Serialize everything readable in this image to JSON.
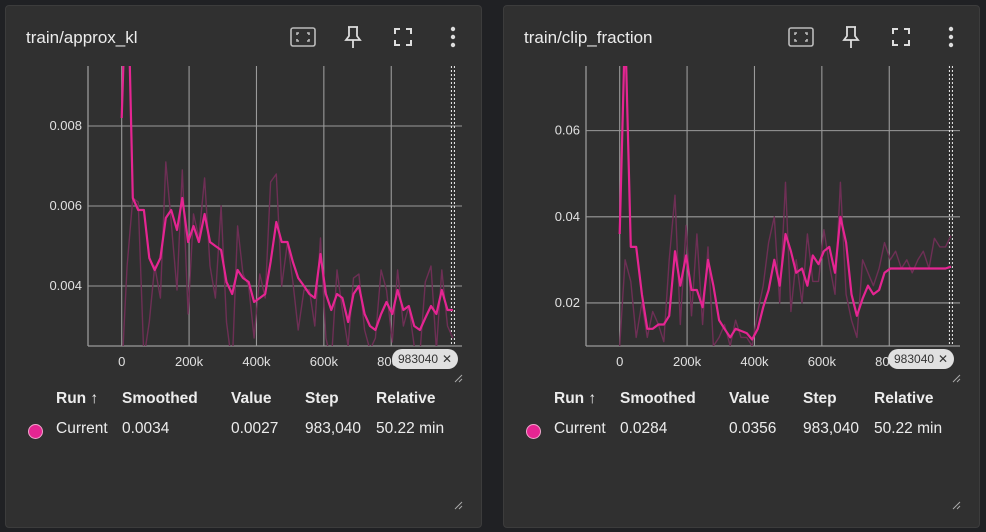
{
  "panels": [
    {
      "title": "train/approx_kl",
      "hover_step_chip": "983040",
      "table": {
        "headers": {
          "run": "Run ↑",
          "smoothed": "Smoothed",
          "value": "Value",
          "step": "Step",
          "relative": "Relative"
        },
        "row": {
          "run": "Current",
          "smoothed": "0.0034",
          "value": "0.0027",
          "step": "983,040",
          "relative": "50.22 min"
        }
      }
    },
    {
      "title": "train/clip_fraction",
      "hover_step_chip": "983040",
      "table": {
        "headers": {
          "run": "Run ↑",
          "smoothed": "Smoothed",
          "value": "Value",
          "step": "Step",
          "relative": "Relative"
        },
        "row": {
          "run": "Current",
          "smoothed": "0.0284",
          "value": "0.0356",
          "step": "983,040",
          "relative": "50.22 min"
        }
      }
    }
  ],
  "icons": [
    "fit-domain-icon",
    "pin-icon",
    "fullscreen-icon",
    "more-vert-icon"
  ],
  "colors": {
    "series": "#e52592",
    "raw_series": "#6e2f55",
    "grid": "#9a9a9a",
    "background": "#303030"
  },
  "chart_data": [
    {
      "type": "line",
      "title": "train/approx_kl",
      "xlabel": "",
      "ylabel": "",
      "x_ticks": [
        "0",
        "200k",
        "400k",
        "600k",
        "800k"
      ],
      "y_ticks": [
        "0.004",
        "0.006",
        "0.008"
      ],
      "xlim": [
        -100000,
        1010000
      ],
      "ylim": [
        0.0025,
        0.0095
      ],
      "grid": true,
      "hover_step": 983040,
      "series": [
        {
          "name": "Current",
          "x": [
            0,
            16000,
            33000,
            49000,
            66000,
            82000,
            98000,
            115000,
            131000,
            147000,
            164000,
            180000,
            197000,
            213000,
            229000,
            246000,
            262000,
            278000,
            295000,
            311000,
            328000,
            344000,
            360000,
            377000,
            393000,
            410000,
            426000,
            442000,
            459000,
            475000,
            492000,
            508000,
            524000,
            541000,
            557000,
            573000,
            590000,
            606000,
            622000,
            639000,
            655000,
            672000,
            688000,
            704000,
            721000,
            737000,
            753000,
            770000,
            786000,
            803000,
            819000,
            836000,
            852000,
            868000,
            885000,
            901000,
            918000,
            934000,
            950000,
            967000,
            983000
          ],
          "y": [
            0.0082,
            0.0125,
            0.0062,
            0.0059,
            0.0059,
            0.0047,
            0.0044,
            0.0047,
            0.0057,
            0.0059,
            0.0054,
            0.0062,
            0.0051,
            0.0055,
            0.0051,
            0.0058,
            0.0051,
            0.005,
            0.0049,
            0.0041,
            0.0038,
            0.0044,
            0.0042,
            0.0041,
            0.0036,
            0.0037,
            0.0038,
            0.0046,
            0.0056,
            0.0051,
            0.0051,
            0.0046,
            0.0042,
            0.004,
            0.0038,
            0.0037,
            0.0048,
            0.0038,
            0.0034,
            0.0038,
            0.0037,
            0.0031,
            0.0038,
            0.004,
            0.0033,
            0.003,
            0.0029,
            0.0033,
            0.0036,
            0.0033,
            0.0039,
            0.0034,
            0.0035,
            0.003,
            0.0029,
            0.0032,
            0.0035,
            0.0033,
            0.0039,
            0.0034,
            0.0034
          ]
        },
        {
          "name": "Current (raw)",
          "x": [
            0,
            16000,
            33000,
            49000,
            66000,
            82000,
            98000,
            115000,
            131000,
            147000,
            164000,
            180000,
            197000,
            213000,
            229000,
            246000,
            262000,
            278000,
            295000,
            311000,
            328000,
            344000,
            360000,
            377000,
            393000,
            410000,
            426000,
            442000,
            459000,
            475000,
            492000,
            508000,
            524000,
            541000,
            557000,
            573000,
            590000,
            606000,
            622000,
            639000,
            655000,
            672000,
            688000,
            704000,
            721000,
            737000,
            753000,
            770000,
            786000,
            803000,
            819000,
            836000,
            852000,
            868000,
            885000,
            901000,
            918000,
            934000,
            950000,
            967000,
            983000
          ],
          "y": [
            0.0018,
            0.0045,
            0.0062,
            0.0061,
            0.0022,
            0.0031,
            0.0045,
            0.0037,
            0.0071,
            0.0056,
            0.0039,
            0.0069,
            0.0033,
            0.0058,
            0.0052,
            0.0067,
            0.0045,
            0.0037,
            0.006,
            0.0031,
            0.002,
            0.0055,
            0.0043,
            0.004,
            0.0027,
            0.0043,
            0.0037,
            0.0066,
            0.0068,
            0.004,
            0.0051,
            0.0041,
            0.0029,
            0.0039,
            0.0039,
            0.003,
            0.0052,
            0.0027,
            0.0021,
            0.0044,
            0.0034,
            0.0025,
            0.0042,
            0.0043,
            0.0029,
            0.0024,
            0.0027,
            0.0044,
            0.0039,
            0.0026,
            0.0044,
            0.003,
            0.0035,
            0.0025,
            0.0023,
            0.0041,
            0.0045,
            0.0024,
            0.0044,
            0.003,
            0.0027
          ]
        }
      ]
    },
    {
      "type": "line",
      "title": "train/clip_fraction",
      "xlabel": "",
      "ylabel": "",
      "x_ticks": [
        "0",
        "200k",
        "400k",
        "600k",
        "800k"
      ],
      "y_ticks": [
        "0.02",
        "0.04",
        "0.06"
      ],
      "xlim": [
        -100000,
        1010000
      ],
      "ylim": [
        0.01,
        0.075
      ],
      "grid": true,
      "hover_step": 983040,
      "series": [
        {
          "name": "Current",
          "x": [
            0,
            16000,
            33000,
            49000,
            66000,
            82000,
            98000,
            115000,
            131000,
            147000,
            164000,
            180000,
            197000,
            213000,
            229000,
            246000,
            262000,
            278000,
            295000,
            311000,
            328000,
            344000,
            360000,
            377000,
            393000,
            410000,
            426000,
            442000,
            459000,
            475000,
            492000,
            508000,
            524000,
            541000,
            557000,
            573000,
            590000,
            606000,
            622000,
            639000,
            655000,
            672000,
            688000,
            704000,
            721000,
            737000,
            753000,
            770000,
            786000,
            803000,
            819000,
            836000,
            852000,
            868000,
            885000,
            901000,
            918000,
            934000,
            950000,
            967000,
            983000
          ],
          "y": [
            0.036,
            0.085,
            0.033,
            0.033,
            0.022,
            0.014,
            0.014,
            0.015,
            0.015,
            0.017,
            0.032,
            0.024,
            0.031,
            0.023,
            0.023,
            0.019,
            0.03,
            0.024,
            0.016,
            0.014,
            0.012,
            0.014,
            0.0135,
            0.013,
            0.0115,
            0.014,
            0.019,
            0.023,
            0.03,
            0.024,
            0.036,
            0.032,
            0.027,
            0.028,
            0.024,
            0.031,
            0.029,
            0.032,
            0.033,
            0.027,
            0.04,
            0.034,
            0.022,
            0.017,
            0.021,
            0.024,
            0.022,
            0.023,
            0.027,
            0.028,
            0.028,
            0.028,
            0.028,
            0.028,
            0.028,
            0.028,
            0.028,
            0.028,
            0.028,
            0.028,
            0.0284
          ]
        },
        {
          "name": "Current (raw)",
          "x": [
            0,
            16000,
            33000,
            49000,
            66000,
            82000,
            98000,
            115000,
            131000,
            147000,
            164000,
            180000,
            197000,
            213000,
            229000,
            246000,
            262000,
            278000,
            295000,
            311000,
            328000,
            344000,
            360000,
            377000,
            393000,
            410000,
            426000,
            442000,
            459000,
            475000,
            492000,
            508000,
            524000,
            541000,
            557000,
            573000,
            590000,
            606000,
            622000,
            639000,
            655000,
            672000,
            688000,
            704000,
            721000,
            737000,
            753000,
            770000,
            786000,
            803000,
            819000,
            836000,
            852000,
            868000,
            885000,
            901000,
            918000,
            934000,
            950000,
            967000,
            983000
          ],
          "y": [
            0.01,
            0.03,
            0.025,
            0.012,
            0.02,
            0.012,
            0.018,
            0.015,
            0.011,
            0.03,
            0.045,
            0.015,
            0.038,
            0.017,
            0.036,
            0.015,
            0.033,
            0.01,
            0.012,
            0.015,
            0.01,
            0.016,
            0.012,
            0.012,
            0.01,
            0.018,
            0.024,
            0.034,
            0.04,
            0.02,
            0.048,
            0.018,
            0.03,
            0.02,
            0.036,
            0.025,
            0.025,
            0.037,
            0.029,
            0.022,
            0.048,
            0.022,
            0.016,
            0.012,
            0.03,
            0.027,
            0.024,
            0.028,
            0.034,
            0.03,
            0.032,
            0.028,
            0.03,
            0.027,
            0.03,
            0.032,
            0.028,
            0.035,
            0.033,
            0.033,
            0.0356
          ]
        }
      ]
    }
  ]
}
